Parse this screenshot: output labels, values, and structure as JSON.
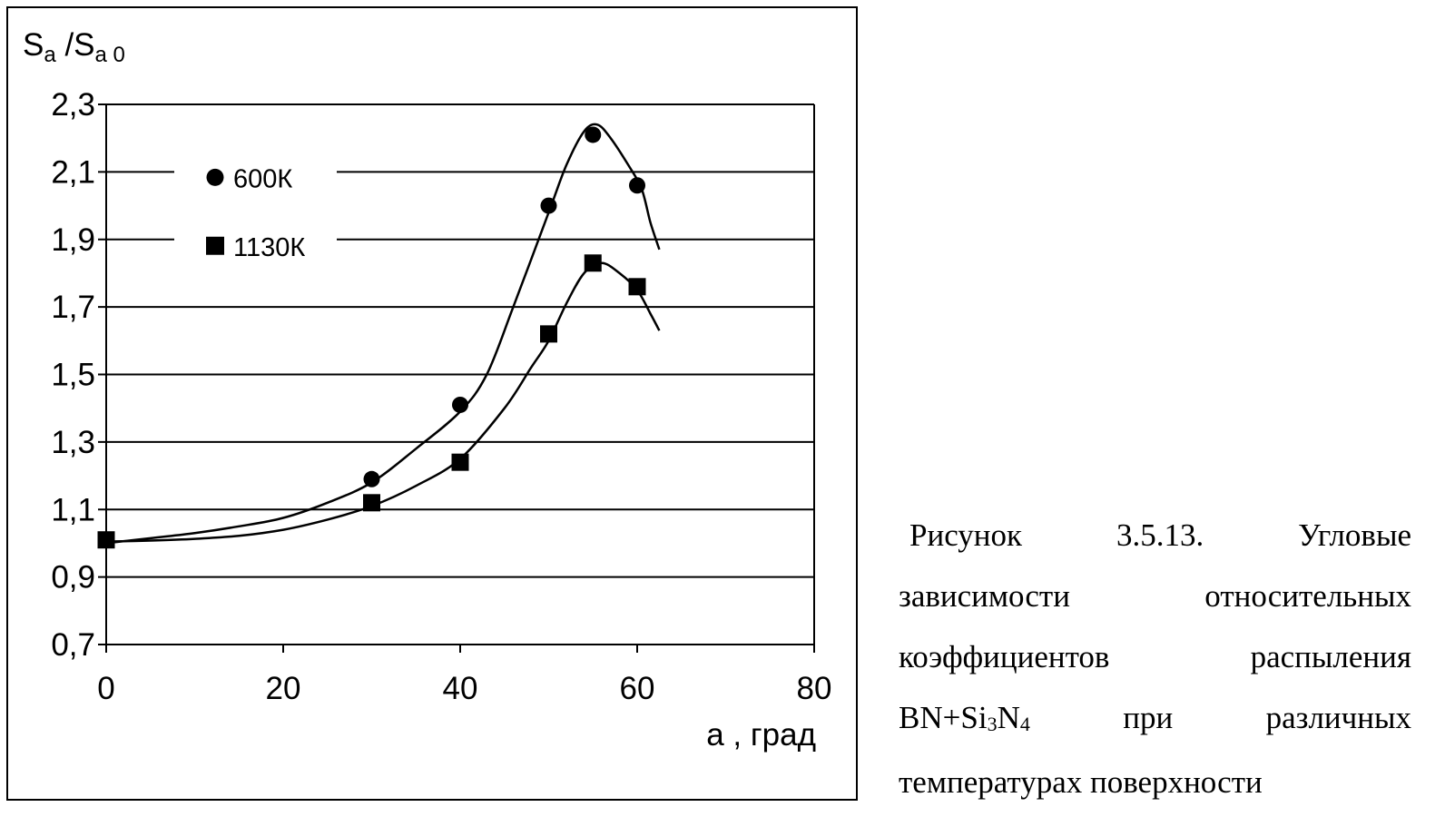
{
  "chart_data": {
    "type": "line",
    "ylabel": {
      "main1": "S",
      "sub1": "a",
      "sep": " /S",
      "sub2": "a 0"
    },
    "xlabel": "a , град",
    "xlim": [
      0,
      80
    ],
    "ylim": [
      0.7,
      2.3
    ],
    "x_ticks": [
      0,
      20,
      40,
      60,
      80
    ],
    "x_tick_labels": [
      "0",
      "20",
      "40",
      "60",
      "80"
    ],
    "y_ticks": [
      0.7,
      0.9,
      1.1,
      1.3,
      1.5,
      1.7,
      1.9,
      2.1,
      2.3
    ],
    "y_tick_labels": [
      "0,7",
      "0,9",
      "1,1",
      "1,3",
      "1,5",
      "1,7",
      "1,9",
      "2,1",
      "2,3"
    ],
    "grid": "horizontal",
    "legend_position": "top-left",
    "series": [
      {
        "name": "600К",
        "marker": "circle",
        "points": [
          [
            0,
            1.01
          ],
          [
            30,
            1.19
          ],
          [
            40,
            1.41
          ],
          [
            50,
            2.0
          ],
          [
            55,
            2.21
          ],
          [
            60,
            2.06
          ]
        ],
        "curve": [
          [
            0,
            1.0
          ],
          [
            5,
            1.015
          ],
          [
            10,
            1.03
          ],
          [
            15,
            1.05
          ],
          [
            20,
            1.075
          ],
          [
            25,
            1.12
          ],
          [
            30,
            1.18
          ],
          [
            35,
            1.28
          ],
          [
            40,
            1.39
          ],
          [
            43,
            1.5
          ],
          [
            46,
            1.7
          ],
          [
            50,
            1.98
          ],
          [
            52,
            2.12
          ],
          [
            54,
            2.22
          ],
          [
            55.5,
            2.24
          ],
          [
            57,
            2.2
          ],
          [
            59,
            2.12
          ],
          [
            60.5,
            2.05
          ],
          [
            61.5,
            1.95
          ],
          [
            62.5,
            1.87
          ]
        ]
      },
      {
        "name": "1130К",
        "marker": "square",
        "points": [
          [
            0,
            1.01
          ],
          [
            30,
            1.12
          ],
          [
            40,
            1.24
          ],
          [
            50,
            1.62
          ],
          [
            55,
            1.83
          ],
          [
            60,
            1.76
          ]
        ],
        "curve": [
          [
            0,
            1.005
          ],
          [
            5,
            1.008
          ],
          [
            10,
            1.013
          ],
          [
            15,
            1.022
          ],
          [
            20,
            1.04
          ],
          [
            25,
            1.07
          ],
          [
            30,
            1.11
          ],
          [
            35,
            1.17
          ],
          [
            40,
            1.25
          ],
          [
            45,
            1.4
          ],
          [
            48,
            1.52
          ],
          [
            50,
            1.6
          ],
          [
            52,
            1.71
          ],
          [
            54,
            1.8
          ],
          [
            56,
            1.83
          ],
          [
            58,
            1.8
          ],
          [
            60,
            1.75
          ],
          [
            61.5,
            1.68
          ],
          [
            62.5,
            1.63
          ]
        ]
      }
    ]
  },
  "caption": {
    "text_before": "Рисунок 3.5.13. Угловые зависимости относительных коэффициентов распыления BN+Si",
    "sub1": "3",
    "text_mid": "N",
    "sub2": "4",
    "text_after": " при различных температурах поверхности"
  }
}
